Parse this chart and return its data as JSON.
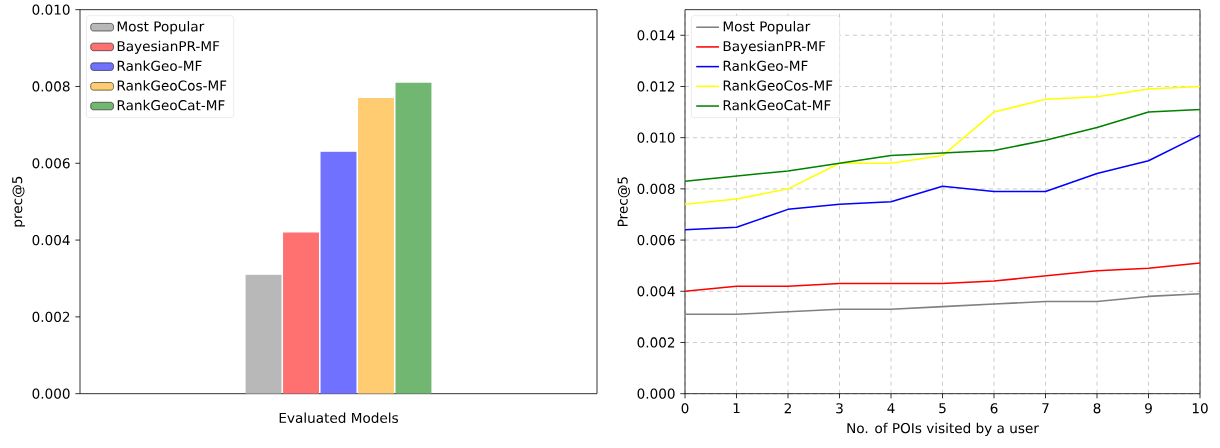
{
  "chart_data": [
    {
      "type": "bar",
      "categories": [
        null
      ],
      "xlabel": "Evaluated Models",
      "ylabel": "prec@5",
      "series": [
        {
          "name": "Most Popular",
          "color": "#b8b8b8",
          "values": [
            0.0031
          ]
        },
        {
          "name": "BayesianPR-MF",
          "color": "#ff7171",
          "values": [
            0.0042
          ]
        },
        {
          "name": "RankGeo-MF",
          "color": "#7171ff",
          "values": [
            0.0063
          ]
        },
        {
          "name": "RankGeoCos-MF",
          "color": "#ffcc71",
          "values": [
            0.0077
          ]
        },
        {
          "name": "RankGeoCat-MF",
          "color": "#71b771",
          "values": [
            0.0081
          ]
        }
      ],
      "ylim": [
        0,
        0.01
      ],
      "yticks": [
        {
          "value": 0,
          "label": "0.000"
        },
        {
          "value": 0.002,
          "label": "0.002"
        },
        {
          "value": 0.004,
          "label": "0.004"
        },
        {
          "value": 0.006,
          "label": "0.006"
        },
        {
          "value": 0.008,
          "label": "0.008"
        },
        {
          "value": 0.01,
          "label": "0.010"
        }
      ],
      "grid": false,
      "legend": "top left"
    },
    {
      "type": "line",
      "x": [
        0,
        1,
        2,
        3,
        4,
        5,
        6,
        7,
        8,
        9,
        10
      ],
      "xlabel": "No. of POIs visited by a user",
      "ylabel": "Prec@5",
      "series": [
        {
          "name": "Most Popular",
          "color": "#808080",
          "values": [
            0.0031,
            0.0031,
            0.0032,
            0.0033,
            0.0033,
            0.0034,
            0.0035,
            0.0036,
            0.0036,
            0.0038,
            0.0039
          ]
        },
        {
          "name": "BayesianPR-MF",
          "color": "#ff0000",
          "values": [
            0.004,
            0.0042,
            0.0042,
            0.0043,
            0.0043,
            0.0043,
            0.0044,
            0.0046,
            0.0048,
            0.0049,
            0.0051
          ]
        },
        {
          "name": "RankGeo-MF",
          "color": "#0000ff",
          "values": [
            0.0064,
            0.0065,
            0.0072,
            0.0074,
            0.0075,
            0.0081,
            0.0079,
            0.0079,
            0.0086,
            0.0091,
            0.0101
          ]
        },
        {
          "name": "RankGeoCos-MF",
          "color": "#ffff00",
          "values": [
            0.0074,
            0.0076,
            0.008,
            0.009,
            0.009,
            0.0093,
            0.011,
            0.0115,
            0.0116,
            0.0119,
            0.012
          ]
        },
        {
          "name": "RankGeoCat-MF",
          "color": "#008000",
          "values": [
            0.0083,
            0.0085,
            0.0087,
            0.009,
            0.0093,
            0.0094,
            0.0095,
            0.0099,
            0.0104,
            0.011,
            0.0111
          ]
        }
      ],
      "xlim": [
        0,
        10
      ],
      "xticks": [
        0,
        1,
        2,
        3,
        4,
        5,
        6,
        7,
        8,
        9,
        10
      ],
      "ylim": [
        0,
        0.015
      ],
      "yticks": [
        {
          "value": 0,
          "label": "0.000"
        },
        {
          "value": 0.002,
          "label": "0.002"
        },
        {
          "value": 0.004,
          "label": "0.004"
        },
        {
          "value": 0.006,
          "label": "0.006"
        },
        {
          "value": 0.008,
          "label": "0.008"
        },
        {
          "value": 0.01,
          "label": "0.010"
        },
        {
          "value": 0.012,
          "label": "0.012"
        },
        {
          "value": 0.014,
          "label": "0.014"
        }
      ],
      "grid": true,
      "legend": "top left",
      "line_style": "solid",
      "marker": "none"
    }
  ]
}
